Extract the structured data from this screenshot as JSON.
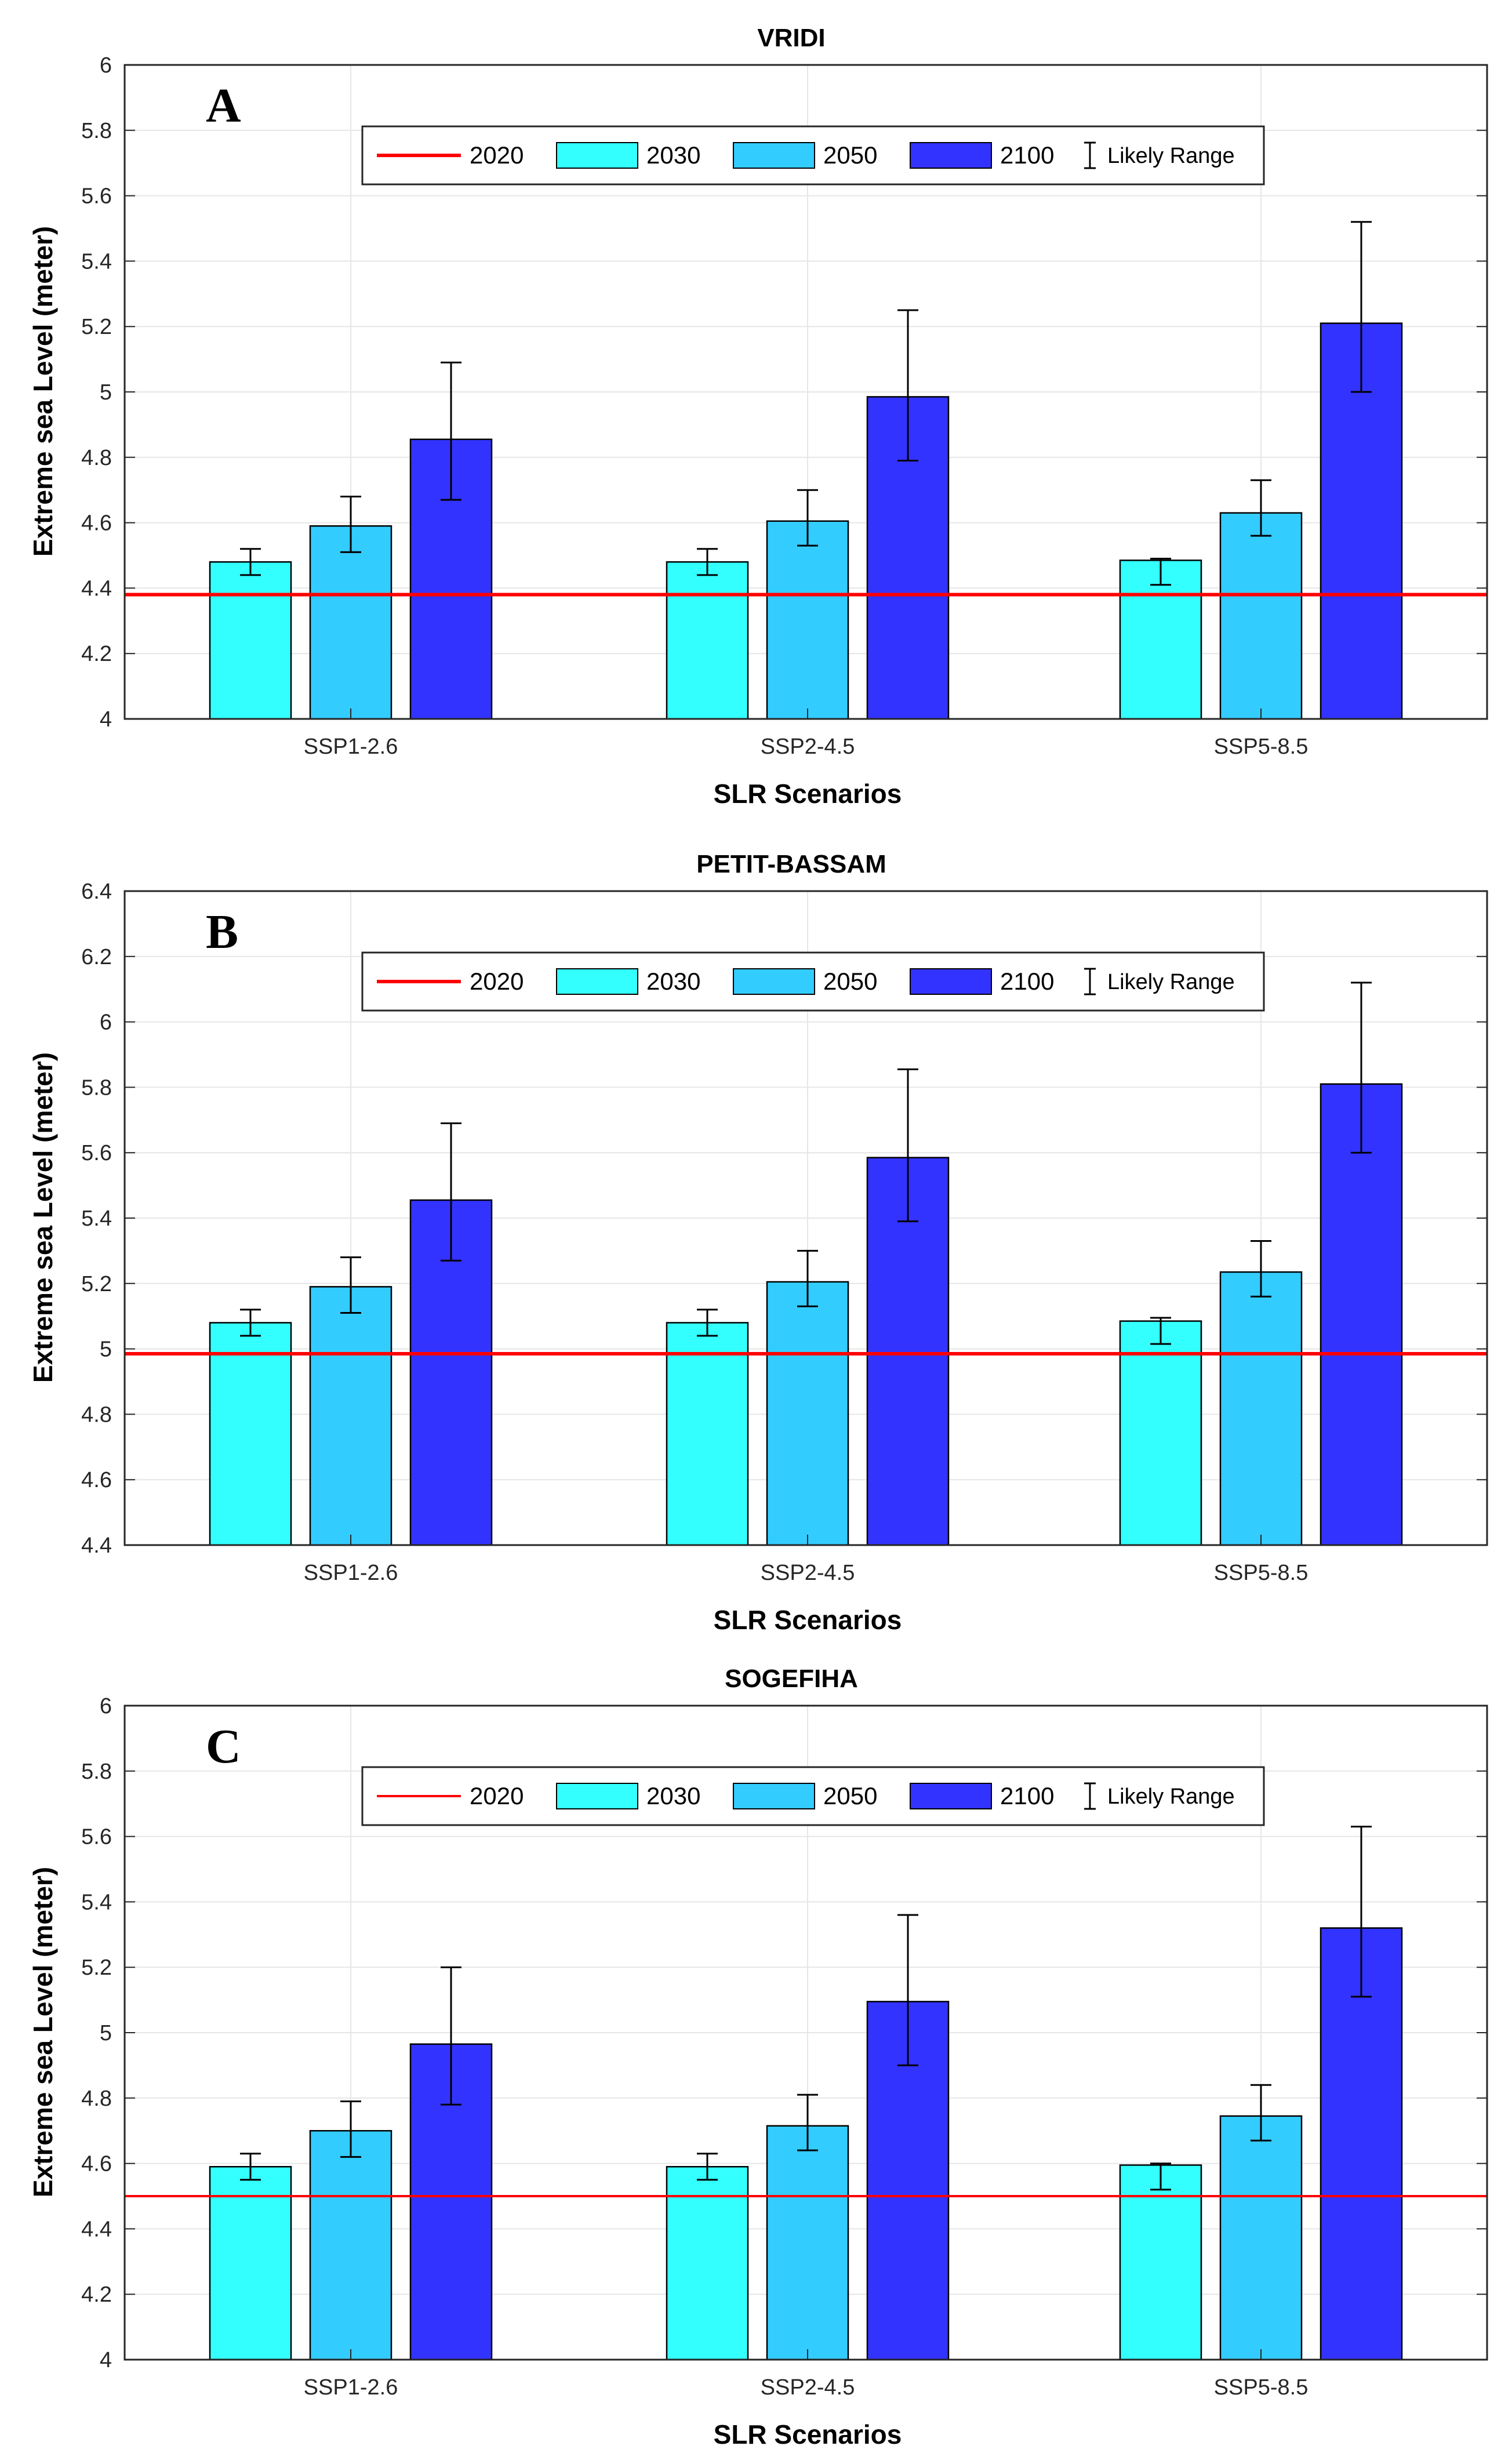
{
  "figure": {
    "panels": [
      {
        "title": "VRIDI",
        "label": "A",
        "xlabel": "SLR Scenarios",
        "ylabel": "Extreme sea Level (meter)",
        "legend": {
          "items": [
            "2020",
            "2030",
            "2050",
            "2100"
          ],
          "range_label": "Likely Range"
        }
      },
      {
        "title": "PETIT-BASSAM",
        "label": "B",
        "xlabel": "SLR Scenarios",
        "ylabel": "Extreme sea Level (meter)",
        "legend": {
          "items": [
            "2020",
            "2030",
            "2050",
            "2100"
          ],
          "range_label": "Likely Range"
        }
      },
      {
        "title": "SOGEFIHA",
        "label": "C",
        "xlabel": "SLR Scenarios",
        "ylabel": "Extreme sea Level (meter)",
        "legend": {
          "items": [
            "2020",
            "2030",
            "2050",
            "2100"
          ],
          "range_label": "Likely Range"
        }
      }
    ]
  },
  "colors": {
    "baseline": "#ff0000",
    "y2030": "#33ffff",
    "y2050": "#33ccff",
    "y2100": "#3333ff",
    "grid": "#e6e6e6",
    "axis": "#262626"
  },
  "chart_data": [
    {
      "type": "bar",
      "title": "VRIDI",
      "xlabel": "SLR Scenarios",
      "ylabel": "Extreme sea Level (meter)",
      "categories": [
        "SSP1-2.6",
        "SSP2-4.5",
        "SSP5-8.5"
      ],
      "ylim": [
        4,
        6
      ],
      "yticks": [
        4,
        4.2,
        4.4,
        4.6,
        4.8,
        5,
        5.2,
        5.4,
        5.6,
        5.8,
        6
      ],
      "ytick_labels": [
        "4",
        "4.2",
        "4.4",
        "4.6",
        "4.8",
        "5",
        "5.2",
        "5.4",
        "5.6",
        "5.8",
        "6"
      ],
      "baseline": {
        "name": "2020",
        "value": 4.38
      },
      "series": [
        {
          "name": "2030",
          "values": [
            4.48,
            4.48,
            4.485
          ],
          "low": [
            4.44,
            4.44,
            4.41
          ],
          "high": [
            4.52,
            4.52,
            4.49
          ]
        },
        {
          "name": "2050",
          "values": [
            4.59,
            4.605,
            4.63
          ],
          "low": [
            4.51,
            4.53,
            4.56
          ],
          "high": [
            4.68,
            4.7,
            4.73
          ]
        },
        {
          "name": "2100",
          "values": [
            4.855,
            4.985,
            5.21
          ],
          "low": [
            4.67,
            4.79,
            5.0
          ],
          "high": [
            5.09,
            5.25,
            5.52
          ]
        }
      ],
      "legend": "top-center",
      "grid": true
    },
    {
      "type": "bar",
      "title": "PETIT-BASSAM",
      "xlabel": "SLR Scenarios",
      "ylabel": "Extreme sea Level (meter)",
      "categories": [
        "SSP1-2.6",
        "SSP2-4.5",
        "SSP5-8.5"
      ],
      "ylim": [
        4.4,
        6.4
      ],
      "yticks": [
        4.4,
        4.6,
        4.8,
        5,
        5.2,
        5.4,
        5.6,
        5.8,
        6,
        6.2,
        6.4
      ],
      "ytick_labels": [
        "4.4",
        "4.6",
        "4.8",
        "5",
        "5.2",
        "5.4",
        "5.6",
        "5.8",
        "6",
        "6.2",
        "6.4"
      ],
      "baseline": {
        "name": "2020",
        "value": 4.985
      },
      "series": [
        {
          "name": "2030",
          "values": [
            5.08,
            5.08,
            5.085
          ],
          "low": [
            5.04,
            5.04,
            5.015
          ],
          "high": [
            5.12,
            5.12,
            5.095
          ]
        },
        {
          "name": "2050",
          "values": [
            5.19,
            5.205,
            5.235
          ],
          "low": [
            5.11,
            5.13,
            5.16
          ],
          "high": [
            5.28,
            5.3,
            5.33
          ]
        },
        {
          "name": "2100",
          "values": [
            5.455,
            5.585,
            5.81
          ],
          "low": [
            5.27,
            5.39,
            5.6
          ],
          "high": [
            5.69,
            5.855,
            6.12
          ]
        }
      ],
      "legend": "top-center",
      "grid": true
    },
    {
      "type": "bar",
      "title": "SOGEFIHA",
      "xlabel": "SLR Scenarios",
      "ylabel": "Extreme sea Level (meter)",
      "categories": [
        "SSP1-2.6",
        "SSP2-4.5",
        "SSP5-8.5"
      ],
      "ylim": [
        4,
        6
      ],
      "yticks": [
        4,
        4.2,
        4.4,
        4.6,
        4.8,
        5,
        5.2,
        5.4,
        5.6,
        5.8,
        6
      ],
      "ytick_labels": [
        "4",
        "4.2",
        "4.4",
        "4.6",
        "4.8",
        "5",
        "5.2",
        "5.4",
        "5.6",
        "5.8",
        "6"
      ],
      "baseline": {
        "name": "2020",
        "value": 4.5
      },
      "series": [
        {
          "name": "2030",
          "values": [
            4.59,
            4.59,
            4.595
          ],
          "low": [
            4.55,
            4.55,
            4.52
          ],
          "high": [
            4.63,
            4.63,
            4.6
          ]
        },
        {
          "name": "2050",
          "values": [
            4.7,
            4.715,
            4.745
          ],
          "low": [
            4.62,
            4.64,
            4.67
          ],
          "high": [
            4.79,
            4.81,
            4.84
          ]
        },
        {
          "name": "2100",
          "values": [
            4.965,
            5.095,
            5.32
          ],
          "low": [
            4.78,
            4.9,
            5.11
          ],
          "high": [
            5.2,
            5.36,
            5.63
          ]
        }
      ],
      "legend": "top-center",
      "grid": true
    }
  ]
}
